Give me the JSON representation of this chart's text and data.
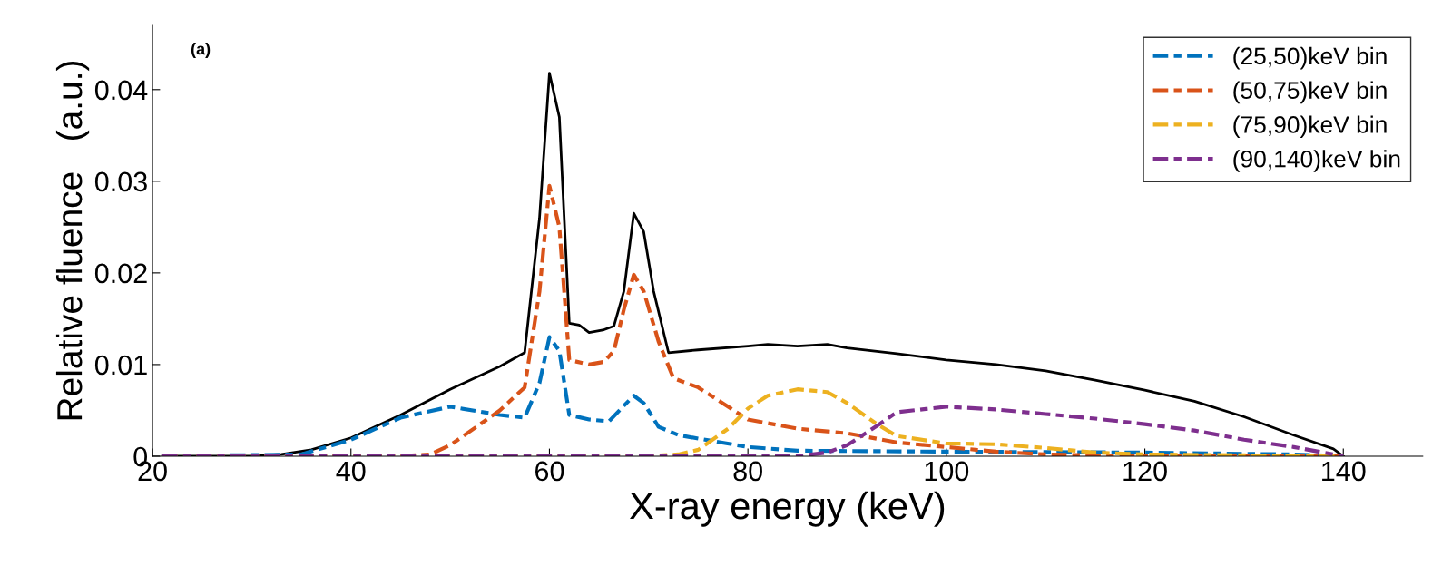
{
  "chart_data": {
    "type": "line",
    "xlabel": "X-ray energy (keV)",
    "ylabel": "Relative fluence   (a.u.)",
    "xlim": [
      20,
      148
    ],
    "xticks": [
      20,
      40,
      60,
      80,
      100,
      120,
      140
    ],
    "ylim": [
      0,
      0.047
    ],
    "yticks": [
      0,
      0.01,
      0.02,
      0.03,
      0.04
    ],
    "grid": false,
    "legend": "top right",
    "annotations": [
      "(a)"
    ],
    "series": [
      {
        "color": "#000000",
        "line_style": "solid",
        "x": [
          21,
          30,
          33,
          36,
          40,
          45,
          50,
          55,
          57.5,
          59,
          60,
          61,
          62,
          63,
          64,
          65.5,
          66.5,
          67.5,
          68.5,
          69.5,
          70.5,
          72,
          75,
          80,
          82,
          85,
          88,
          90,
          95,
          100,
          105,
          110,
          115,
          120,
          125,
          130,
          135,
          139,
          140
        ],
        "values": [
          0,
          0,
          0.0002,
          0.0007,
          0.002,
          0.0045,
          0.0073,
          0.0098,
          0.0113,
          0.026,
          0.0418,
          0.037,
          0.0145,
          0.0143,
          0.0135,
          0.0138,
          0.0142,
          0.018,
          0.0265,
          0.0245,
          0.018,
          0.0113,
          0.0116,
          0.012,
          0.0122,
          0.012,
          0.0122,
          0.0118,
          0.0112,
          0.0105,
          0.01,
          0.0093,
          0.0083,
          0.0072,
          0.006,
          0.0043,
          0.0023,
          0.0008,
          0
        ]
      },
      {
        "name": "(25,50)keV bin",
        "color": "#0072bd",
        "line_style": "dashed",
        "x": [
          21,
          35,
          40,
          45,
          50,
          55,
          57.5,
          59,
          60,
          61,
          62,
          64,
          66,
          67.5,
          68.5,
          69.5,
          71,
          73,
          80,
          85,
          100,
          120,
          135,
          140
        ],
        "values": [
          0,
          0.0002,
          0.0018,
          0.0042,
          0.0054,
          0.0045,
          0.0042,
          0.008,
          0.013,
          0.0115,
          0.0045,
          0.004,
          0.0038,
          0.0055,
          0.0066,
          0.0058,
          0.0032,
          0.0023,
          0.001,
          0.0006,
          0.0005,
          0.0004,
          0.0002,
          0
        ]
      },
      {
        "name": "(50,75)keV bin",
        "color": "#d95319",
        "line_style": "dashed",
        "x": [
          21,
          45,
          48,
          50,
          55,
          57.5,
          59,
          60,
          61,
          62,
          64,
          65.5,
          66.5,
          67.5,
          68.5,
          69.5,
          71,
          72.5,
          75,
          80,
          85,
          90,
          95,
          100,
          105,
          110,
          120,
          140
        ],
        "values": [
          0,
          0,
          0.0002,
          0.0012,
          0.005,
          0.0075,
          0.018,
          0.0295,
          0.025,
          0.0105,
          0.01,
          0.0103,
          0.0115,
          0.016,
          0.0198,
          0.018,
          0.0125,
          0.0085,
          0.0075,
          0.004,
          0.003,
          0.0025,
          0.0015,
          0.001,
          0.0005,
          0.0002,
          0,
          0
        ]
      },
      {
        "name": "(75,90)keV bin",
        "color": "#edb120",
        "line_style": "dashed",
        "x": [
          21,
          70,
          73,
          75,
          78,
          80,
          82,
          85,
          88,
          90,
          93,
          95,
          100,
          105,
          110,
          115,
          120,
          140
        ],
        "values": [
          0,
          0,
          0.0002,
          0.0007,
          0.003,
          0.0052,
          0.0066,
          0.0073,
          0.007,
          0.0058,
          0.0035,
          0.0022,
          0.0014,
          0.0013,
          0.0009,
          0.0004,
          0.0002,
          0
        ]
      },
      {
        "name": "(90,140)keV bin",
        "color": "#7e2f8e",
        "line_style": "dashed",
        "x": [
          21,
          85,
          88,
          90,
          93,
          95,
          100,
          105,
          110,
          115,
          120,
          125,
          130,
          135,
          138,
          140
        ],
        "values": [
          0,
          0,
          0.0004,
          0.0012,
          0.0033,
          0.0048,
          0.0054,
          0.0051,
          0.0046,
          0.0041,
          0.0035,
          0.0028,
          0.0018,
          0.001,
          0.0004,
          0
        ]
      }
    ]
  }
}
